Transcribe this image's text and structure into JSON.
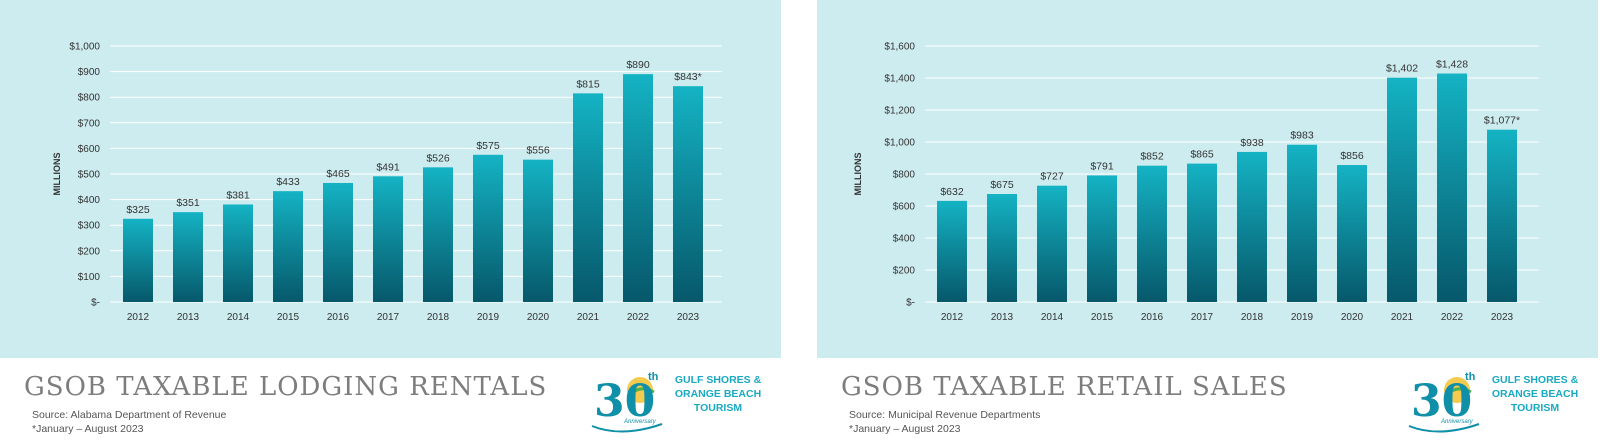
{
  "panels": [
    {
      "title": "GSOB TAXABLE LODGING RENTALS",
      "source": "Source: Alabama Department of Revenue",
      "footnote": "*January – August 2023",
      "logo": {
        "line1": "GULF SHORES &",
        "line2": "ORANGE BEACH",
        "line3": "TOURISM",
        "badge_number": "30",
        "badge_suffix": "th",
        "badge_text": "Anniversary"
      }
    },
    {
      "title": "GSOB TAXABLE RETAIL SALES",
      "source": "Source: Municipal Revenue Departments",
      "footnote": "*January – August 2023",
      "logo": {
        "line1": "GULF SHORES &",
        "line2": "ORANGE BEACH",
        "line3": "TOURISM",
        "badge_number": "30",
        "badge_suffix": "th",
        "badge_text": "Anniversary"
      }
    }
  ],
  "colors": {
    "chart_bg": "#cdecef",
    "bar_top": "#14b3c4",
    "bar_bottom": "#06586a",
    "grid": "#ffffff",
    "title": "#7d7d7d",
    "logo_text": "#1aa9c2"
  },
  "chart_data": [
    {
      "type": "bar",
      "categories": [
        "2012",
        "2013",
        "2014",
        "2015",
        "2016",
        "2017",
        "2018",
        "2019",
        "2020",
        "2021",
        "2022",
        "2023"
      ],
      "values": [
        325,
        351,
        381,
        433,
        465,
        491,
        526,
        575,
        556,
        815,
        890,
        843
      ],
      "data_labels": [
        "$325",
        "$351",
        "$381",
        "$433",
        "$465",
        "$491",
        "$526",
        "$575",
        "$556",
        "$815",
        "$890",
        "$843*"
      ],
      "ylabel": "MILLIONS",
      "ylim": [
        0,
        1000
      ],
      "yticks": [
        0,
        100,
        200,
        300,
        400,
        500,
        600,
        700,
        800,
        900,
        1000
      ],
      "ytick_labels": [
        "$-",
        "$100",
        "$200",
        "$300",
        "$400",
        "$500",
        "$600",
        "$700",
        "$800",
        "$900",
        "$1,000"
      ],
      "grid": true
    },
    {
      "type": "bar",
      "categories": [
        "2012",
        "2013",
        "2014",
        "2015",
        "2016",
        "2017",
        "2018",
        "2019",
        "2020",
        "2021",
        "2022",
        "2023"
      ],
      "values": [
        632,
        675,
        727,
        791,
        852,
        865,
        938,
        983,
        856,
        1402,
        1428,
        1077
      ],
      "data_labels": [
        "$632",
        "$675",
        "$727",
        "$791",
        "$852",
        "$865",
        "$938",
        "$983",
        "$856",
        "$1,402",
        "$1,428",
        "$1,077*"
      ],
      "ylabel": "MILLIONS",
      "ylim": [
        0,
        1600
      ],
      "yticks": [
        0,
        200,
        400,
        600,
        800,
        1000,
        1200,
        1400,
        1600
      ],
      "ytick_labels": [
        "$-",
        "$200",
        "$400",
        "$600",
        "$800",
        "$1,000",
        "$1,200",
        "$1,400",
        "$1,600"
      ],
      "grid": true
    }
  ]
}
